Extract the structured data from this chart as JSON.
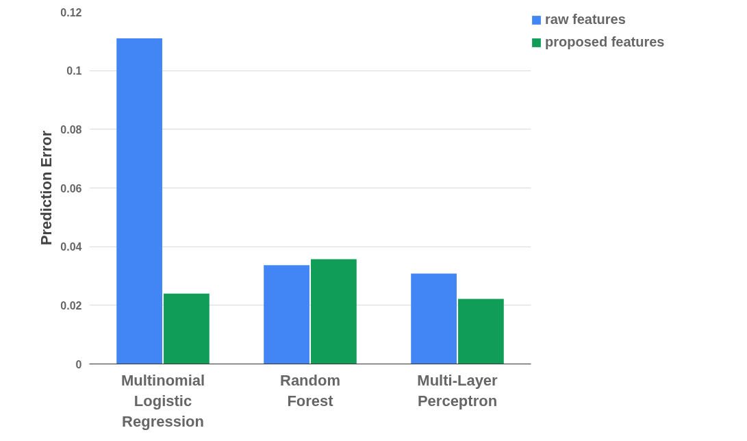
{
  "chart_data": {
    "type": "bar",
    "ylabel": "Prediction Error",
    "categories": [
      "Multinomial Logistic Regression",
      "Random Forest",
      "Multi-Layer Perceptron"
    ],
    "series": [
      {
        "name": "raw features",
        "color": "#4285f4",
        "values": [
          0.111,
          0.0337,
          0.0308
        ]
      },
      {
        "name": "proposed features",
        "color": "#0f9d58",
        "values": [
          0.024,
          0.0357,
          0.0222
        ]
      }
    ],
    "ylim": [
      0,
      0.12
    ],
    "yticks": [
      0,
      0.02,
      0.04,
      0.06,
      0.08,
      {
        "value": 0.1,
        "label": "0.1"
      },
      0.12
    ],
    "grid": "y",
    "legend": "top right"
  }
}
